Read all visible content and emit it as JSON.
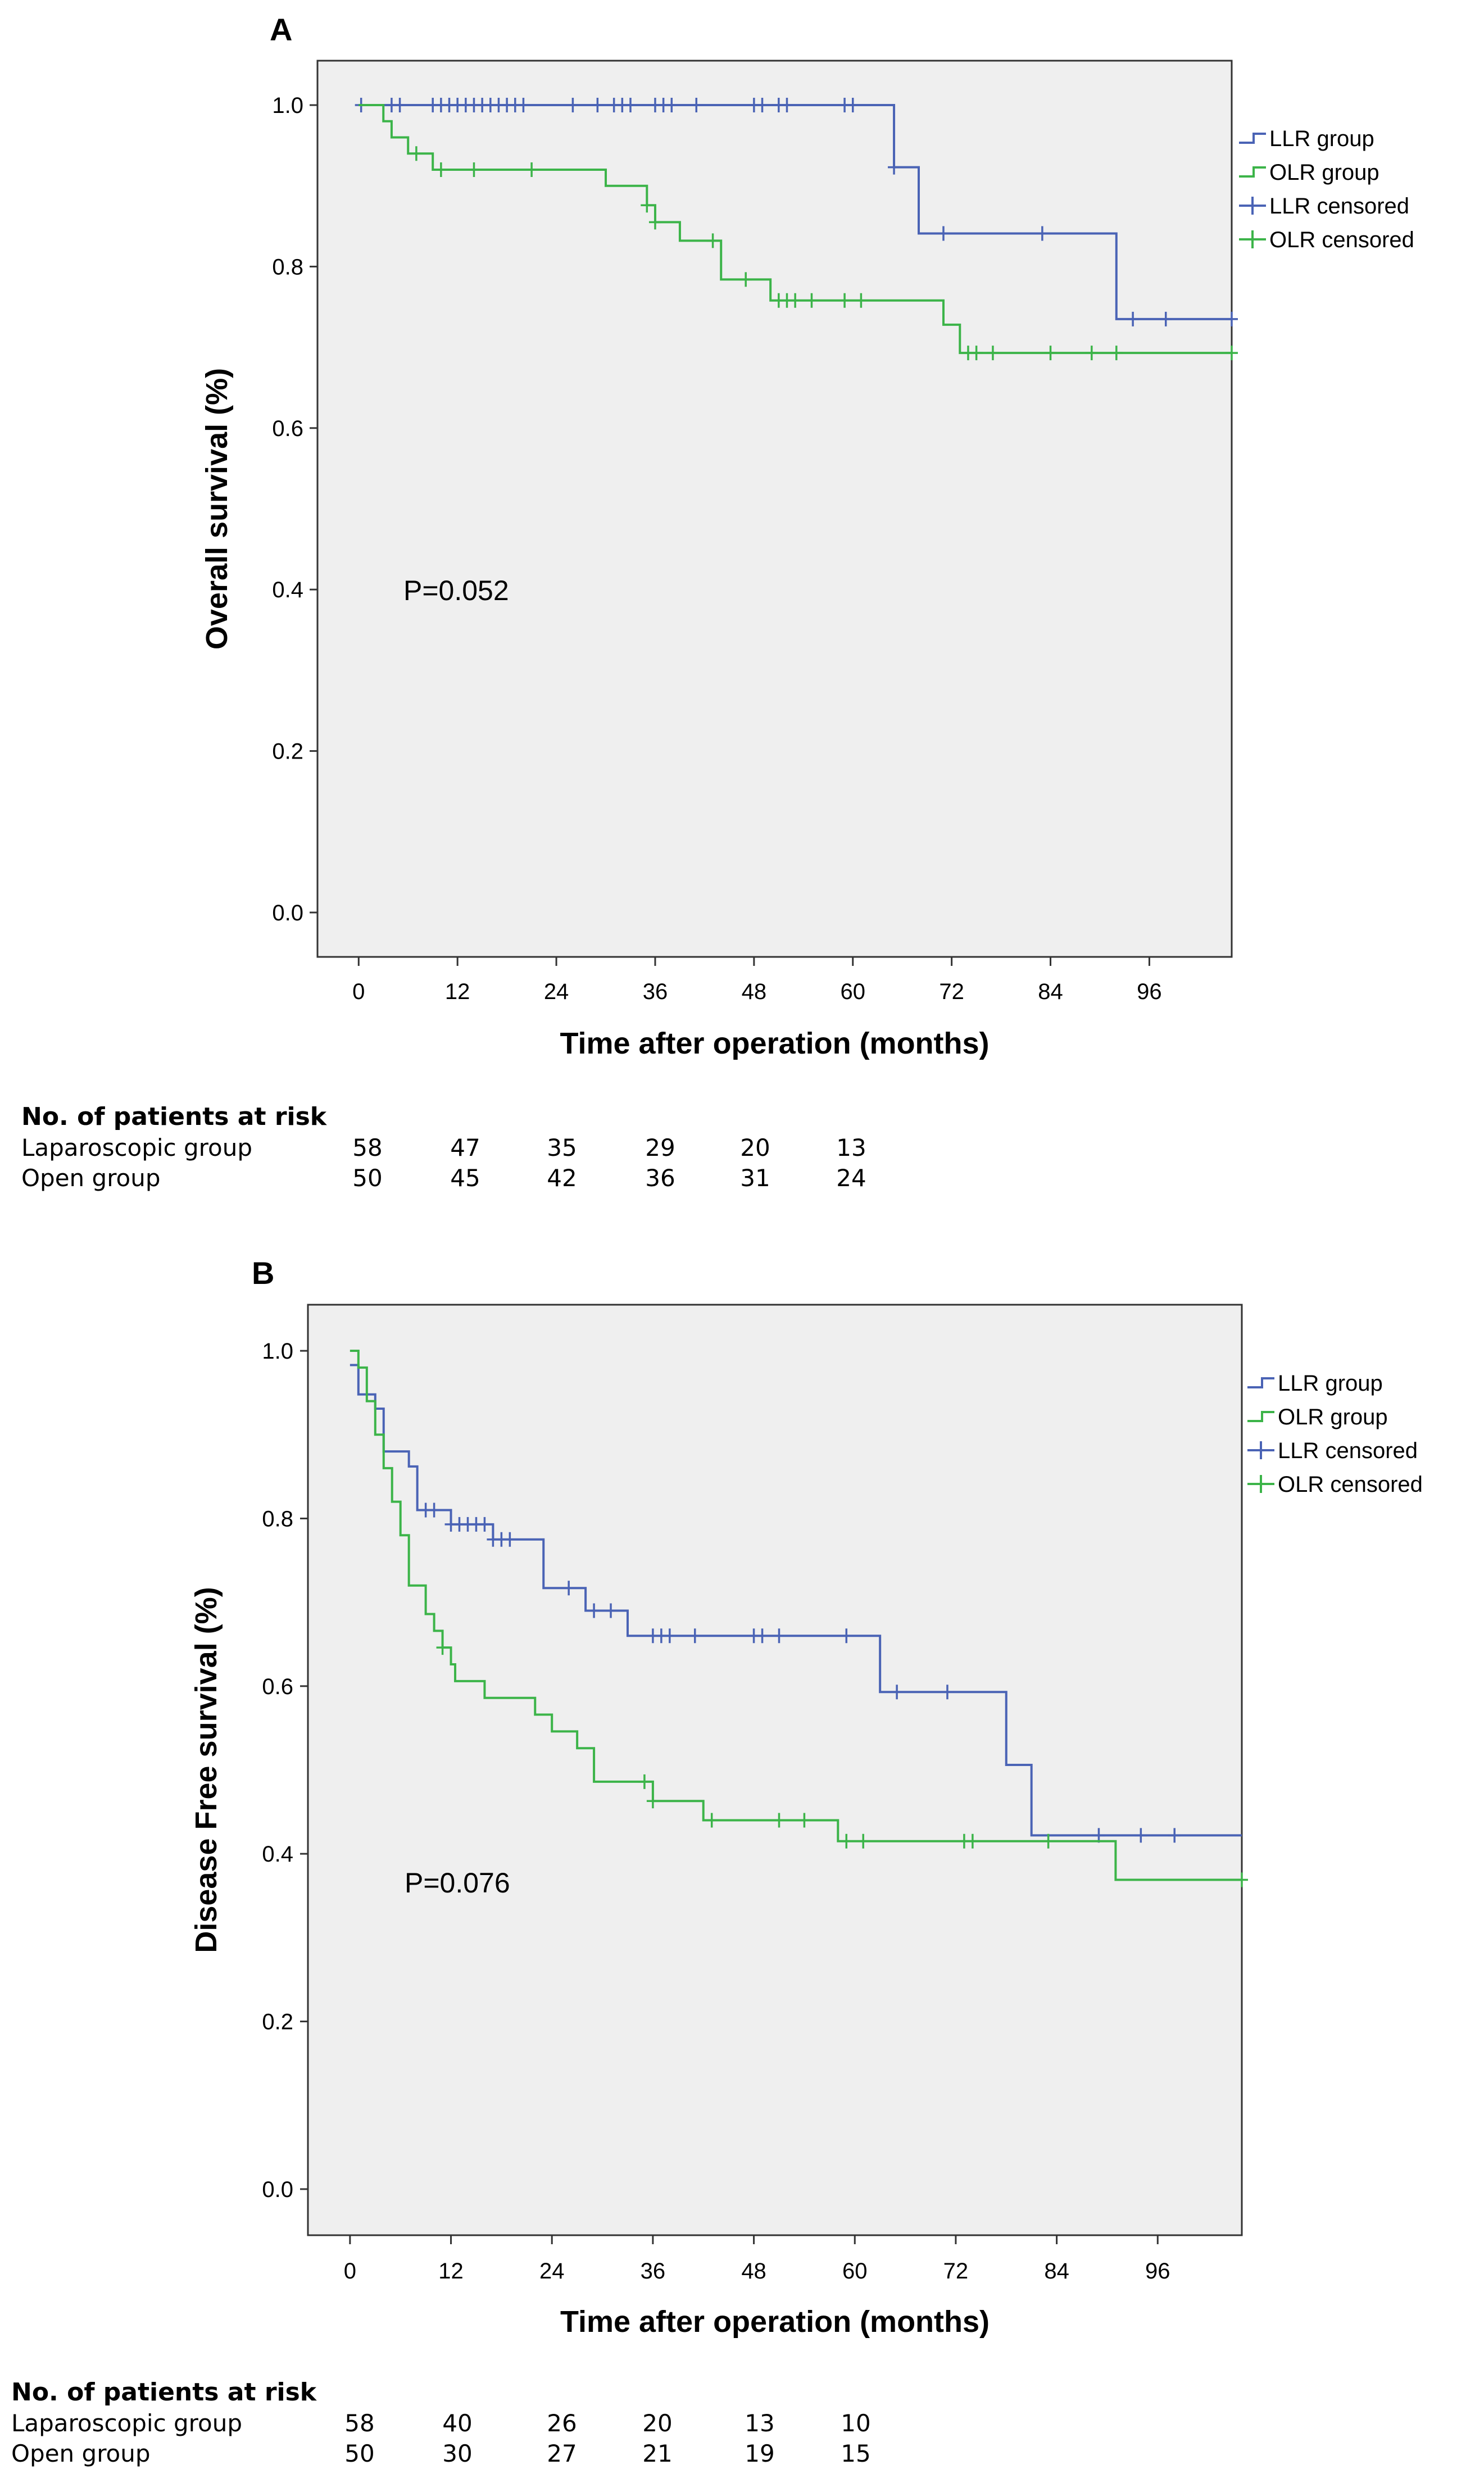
{
  "chart_data": [
    {
      "type": "line",
      "panel_label": "A",
      "xlabel": "Time after operation (months)",
      "ylabel": "Overall survival (%)",
      "xticks": [
        "0",
        "12",
        "24",
        "36",
        "48",
        "60",
        "72",
        "84",
        "96"
      ],
      "yticks": [
        "0.0",
        "0.2",
        "0.4",
        "0.6",
        "0.8",
        "1.0"
      ],
      "xlim": [
        -5,
        106
      ],
      "ylim": [
        -0.055,
        1.055
      ],
      "pvalue_text": "P=0.052",
      "legend": [
        "LLR group",
        "OLR group",
        "LLR censored",
        "OLR censored"
      ],
      "series": [
        {
          "name": "LLR group",
          "color": "#4a63b5",
          "steps": [
            [
              0,
              1.0
            ],
            [
              65,
              0.923
            ],
            [
              68,
              0.841
            ],
            [
              92,
              0.735
            ],
            [
              106,
              0.735
            ]
          ],
          "censored": [
            [
              0.3,
              1.0
            ],
            [
              4,
              1.0
            ],
            [
              5,
              1.0
            ],
            [
              9,
              1.0
            ],
            [
              10,
              1.0
            ],
            [
              11,
              1.0
            ],
            [
              12,
              1.0
            ],
            [
              13,
              1.0
            ],
            [
              14,
              1.0
            ],
            [
              15,
              1.0
            ],
            [
              16,
              1.0
            ],
            [
              17,
              1.0
            ],
            [
              18,
              1.0
            ],
            [
              19,
              1.0
            ],
            [
              20,
              1.0
            ],
            [
              26,
              1.0
            ],
            [
              29,
              1.0
            ],
            [
              31,
              1.0
            ],
            [
              32,
              1.0
            ],
            [
              33,
              1.0
            ],
            [
              36,
              1.0
            ],
            [
              37,
              1.0
            ],
            [
              38,
              1.0
            ],
            [
              41,
              1.0
            ],
            [
              48,
              1.0
            ],
            [
              49,
              1.0
            ],
            [
              51,
              1.0
            ],
            [
              52,
              1.0
            ],
            [
              59,
              1.0
            ],
            [
              60,
              1.0
            ],
            [
              65,
              0.923
            ],
            [
              71,
              0.841
            ],
            [
              83,
              0.841
            ],
            [
              94,
              0.735
            ],
            [
              98,
              0.735
            ],
            [
              106,
              0.735
            ]
          ]
        },
        {
          "name": "OLR group",
          "color": "#3cb449",
          "steps": [
            [
              0,
              1.0
            ],
            [
              3,
              0.98
            ],
            [
              4,
              0.96
            ],
            [
              6,
              0.94
            ],
            [
              9,
              0.92
            ],
            [
              30,
              0.9
            ],
            [
              35,
              0.876
            ],
            [
              36,
              0.855
            ],
            [
              39,
              0.832
            ],
            [
              44,
              0.784
            ],
            [
              50,
              0.758
            ],
            [
              71,
              0.728
            ],
            [
              73,
              0.693
            ],
            [
              106,
              0.693
            ]
          ],
          "censored": [
            [
              7,
              0.94
            ],
            [
              10,
              0.92
            ],
            [
              14,
              0.92
            ],
            [
              21,
              0.92
            ],
            [
              35,
              0.876
            ],
            [
              36,
              0.855
            ],
            [
              43,
              0.832
            ],
            [
              47,
              0.784
            ],
            [
              51,
              0.758
            ],
            [
              52,
              0.758
            ],
            [
              53,
              0.758
            ],
            [
              55,
              0.758
            ],
            [
              59,
              0.758
            ],
            [
              61,
              0.758
            ],
            [
              74,
              0.693
            ],
            [
              75,
              0.693
            ],
            [
              77,
              0.693
            ],
            [
              84,
              0.693
            ],
            [
              89,
              0.693
            ],
            [
              92,
              0.693
            ],
            [
              106,
              0.693
            ]
          ]
        }
      ],
      "risk_table": {
        "title": "No. of patients at risk",
        "rows": [
          {
            "label": "Laparoscopic group",
            "values": [
              "58",
              "47",
              "35",
              "29",
              "20",
              "13"
            ]
          },
          {
            "label": "Open group",
            "values": [
              "50",
              "45",
              "42",
              "36",
              "31",
              "24"
            ]
          }
        ]
      }
    },
    {
      "type": "line",
      "panel_label": "B",
      "xlabel": "Time after operation (months)",
      "ylabel": "Disease Free survival (%)",
      "xticks": [
        "0",
        "12",
        "24",
        "36",
        "48",
        "60",
        "72",
        "84",
        "96"
      ],
      "yticks": [
        "0.0",
        "0.2",
        "0.4",
        "0.6",
        "0.8",
        "1.0"
      ],
      "xlim": [
        -5,
        106
      ],
      "ylim": [
        -0.055,
        1.055
      ],
      "pvalue_text": "P=0.076",
      "legend": [
        "LLR group",
        "OLR group",
        "LLR censored",
        "OLR censored"
      ],
      "series": [
        {
          "name": "LLR group",
          "color": "#4a63b5",
          "steps": [
            [
              0,
              0.983
            ],
            [
              1,
              0.948
            ],
            [
              3,
              0.931
            ],
            [
              4,
              0.88
            ],
            [
              7,
              0.862
            ],
            [
              8,
              0.81
            ],
            [
              12,
              0.793
            ],
            [
              17,
              0.775
            ],
            [
              23,
              0.717
            ],
            [
              28,
              0.69
            ],
            [
              33,
              0.66
            ],
            [
              63,
              0.593
            ],
            [
              78,
              0.506
            ],
            [
              81,
              0.422
            ],
            [
              106,
              0.422
            ]
          ],
          "censored": [
            [
              9,
              0.81
            ],
            [
              10,
              0.81
            ],
            [
              12,
              0.793
            ],
            [
              13,
              0.793
            ],
            [
              14,
              0.793
            ],
            [
              15,
              0.793
            ],
            [
              16,
              0.793
            ],
            [
              17,
              0.775
            ],
            [
              18,
              0.775
            ],
            [
              19,
              0.775
            ],
            [
              26,
              0.717
            ],
            [
              29,
              0.69
            ],
            [
              31,
              0.69
            ],
            [
              36,
              0.66
            ],
            [
              37,
              0.66
            ],
            [
              38,
              0.66
            ],
            [
              41,
              0.66
            ],
            [
              48,
              0.66
            ],
            [
              49,
              0.66
            ],
            [
              51,
              0.66
            ],
            [
              59,
              0.66
            ],
            [
              65,
              0.593
            ],
            [
              71,
              0.593
            ],
            [
              89,
              0.422
            ],
            [
              94,
              0.422
            ],
            [
              98,
              0.422
            ]
          ]
        },
        {
          "name": "OLR group",
          "color": "#3cb449",
          "steps": [
            [
              0,
              1.0
            ],
            [
              1,
              0.98
            ],
            [
              2,
              0.94
            ],
            [
              3,
              0.9
            ],
            [
              4,
              0.86
            ],
            [
              5,
              0.82
            ],
            [
              6,
              0.78
            ],
            [
              7,
              0.72
            ],
            [
              9,
              0.686
            ],
            [
              10,
              0.666
            ],
            [
              11,
              0.646
            ],
            [
              12,
              0.626
            ],
            [
              12.5,
              0.606
            ],
            [
              16,
              0.586
            ],
            [
              22,
              0.566
            ],
            [
              24,
              0.546
            ],
            [
              27,
              0.526
            ],
            [
              29,
              0.486
            ],
            [
              36,
              0.463
            ],
            [
              42,
              0.44
            ],
            [
              58,
              0.415
            ],
            [
              91,
              0.369
            ],
            [
              106,
              0.369
            ]
          ],
          "censored": [
            [
              11,
              0.646
            ],
            [
              35,
              0.486
            ],
            [
              36,
              0.463
            ],
            [
              43,
              0.44
            ],
            [
              51,
              0.44
            ],
            [
              54,
              0.44
            ],
            [
              59,
              0.415
            ],
            [
              61,
              0.415
            ],
            [
              73,
              0.415
            ],
            [
              74,
              0.415
            ],
            [
              83,
              0.415
            ],
            [
              106,
              0.369
            ]
          ]
        }
      ],
      "risk_table": {
        "title": "No. of patients at risk",
        "rows": [
          {
            "label": "Laparoscopic group",
            "values": [
              "58",
              "40",
              "26",
              "20",
              "13",
              "10"
            ]
          },
          {
            "label": "Open group",
            "values": [
              "50",
              "30",
              "27",
              "21",
              "19",
              "15"
            ]
          }
        ]
      }
    }
  ]
}
